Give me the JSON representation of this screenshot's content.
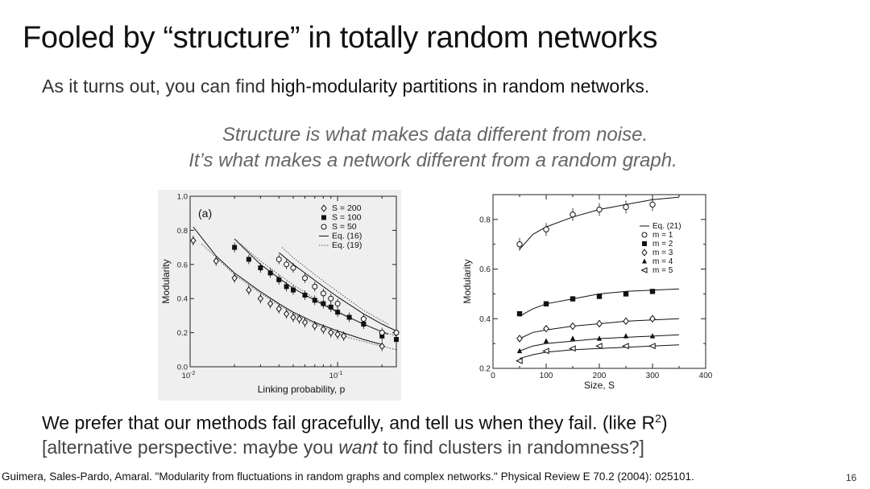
{
  "slide": {
    "title": "Fooled by “structure” in totally random networks",
    "subtitle_pre": "As it turns out, you can find ",
    "subtitle_hl": "high-modularity partitions in random networks",
    "subtitle_post": ".",
    "quote_line1": "Structure is what makes data different from noise.",
    "quote_line2": "It’s what makes a network different from a random graph.",
    "bottom_line1": "We prefer that our methods fail gracefully, and tell us when they fail. (like R",
    "bottom_line1_sup": "2",
    "bottom_line1_end": ")",
    "bottom_line2_pre": "[alternative perspective: maybe you ",
    "bottom_line2_em": "want",
    "bottom_line2_post": " to find clusters in randomness?]",
    "citation": "Guimera, Sales-Pardo, Amaral. \"Modularity from fluctuations in random graphs and complex networks.\" Physical Review E 70.2 (2004): 025101.",
    "page_number": "16"
  },
  "chart_data": [
    {
      "type": "scatter",
      "panel_label": "(a)",
      "xlabel": "Linking probability, p",
      "ylabel": "Modularity",
      "xscale": "log",
      "xlim": [
        0.01,
        0.25
      ],
      "ylim": [
        0.0,
        1.0
      ],
      "xticks": [
        {
          "value": 0.01,
          "label": "10",
          "sup": "-2"
        },
        {
          "value": 0.1,
          "label": "10",
          "sup": "-1"
        }
      ],
      "yticks": [
        "0.0",
        "0.2",
        "0.4",
        "0.6",
        "0.8",
        "1.0"
      ],
      "legend": {
        "position": "top-right",
        "entries": [
          "S = 200",
          "S = 100",
          "S = 50",
          "Eq. (16)",
          "Eq. (19)"
        ]
      },
      "series": [
        {
          "name": "S = 200",
          "marker": "diamond-open",
          "x": [
            0.0105,
            0.015,
            0.02,
            0.025,
            0.03,
            0.035,
            0.04,
            0.045,
            0.05,
            0.055,
            0.06,
            0.07,
            0.08,
            0.09,
            0.1,
            0.11,
            0.2
          ],
          "y": [
            0.74,
            0.62,
            0.52,
            0.45,
            0.4,
            0.37,
            0.34,
            0.31,
            0.29,
            0.28,
            0.26,
            0.24,
            0.22,
            0.2,
            0.19,
            0.18,
            0.12
          ]
        },
        {
          "name": "S = 100",
          "marker": "square-filled",
          "x": [
            0.02,
            0.025,
            0.03,
            0.035,
            0.04,
            0.045,
            0.05,
            0.06,
            0.07,
            0.08,
            0.09,
            0.1,
            0.12,
            0.15,
            0.2,
            0.25
          ],
          "y": [
            0.7,
            0.63,
            0.58,
            0.55,
            0.51,
            0.47,
            0.45,
            0.42,
            0.39,
            0.37,
            0.35,
            0.32,
            0.29,
            0.25,
            0.18,
            0.16
          ]
        },
        {
          "name": "S = 50",
          "marker": "circle-open",
          "x": [
            0.04,
            0.045,
            0.05,
            0.06,
            0.07,
            0.08,
            0.09,
            0.1,
            0.15,
            0.2,
            0.25
          ],
          "y": [
            0.63,
            0.6,
            0.58,
            0.52,
            0.47,
            0.43,
            0.4,
            0.37,
            0.28,
            0.2,
            0.2
          ]
        }
      ],
      "curves": [
        {
          "name": "Eq. (16)",
          "style": "solid",
          "x": [
            0.0105,
            0.015,
            0.02,
            0.03,
            0.04,
            0.05,
            0.07,
            0.1,
            0.15,
            0.2
          ],
          "y": [
            0.82,
            0.65,
            0.55,
            0.44,
            0.37,
            0.32,
            0.26,
            0.21,
            0.16,
            0.13
          ]
        },
        {
          "name": "Eq. (16)",
          "style": "solid",
          "x": [
            0.02,
            0.03,
            0.04,
            0.05,
            0.07,
            0.1,
            0.15,
            0.22
          ],
          "y": [
            0.75,
            0.6,
            0.52,
            0.46,
            0.39,
            0.32,
            0.25,
            0.19
          ]
        },
        {
          "name": "Eq. (16)",
          "style": "solid",
          "x": [
            0.04,
            0.05,
            0.06,
            0.08,
            0.1,
            0.15,
            0.2,
            0.25
          ],
          "y": [
            0.67,
            0.6,
            0.55,
            0.47,
            0.41,
            0.31,
            0.25,
            0.21
          ]
        },
        {
          "name": "Eq. (19)",
          "style": "dotted",
          "x": [
            0.012,
            0.02,
            0.03,
            0.05,
            0.08,
            0.12,
            0.18,
            0.25
          ],
          "y": [
            0.72,
            0.54,
            0.43,
            0.31,
            0.23,
            0.17,
            0.13,
            0.1
          ]
        },
        {
          "name": "Eq. (19)",
          "style": "dotted",
          "x": [
            0.022,
            0.03,
            0.05,
            0.08,
            0.12,
            0.18,
            0.25
          ],
          "y": [
            0.72,
            0.62,
            0.48,
            0.37,
            0.29,
            0.22,
            0.18
          ]
        },
        {
          "name": "Eq. (19)",
          "style": "dotted",
          "x": [
            0.042,
            0.05,
            0.07,
            0.1,
            0.15,
            0.22
          ],
          "y": [
            0.7,
            0.64,
            0.54,
            0.44,
            0.33,
            0.25
          ]
        }
      ]
    },
    {
      "type": "scatter",
      "xlabel": "Size, S",
      "ylabel": "Modularity",
      "xlim": [
        0,
        400
      ],
      "ylim": [
        0.2,
        0.9
      ],
      "xticks": [
        "0",
        "100",
        "200",
        "300",
        "400"
      ],
      "yticks": [
        "0.2",
        "0.4",
        "0.6",
        "0.8"
      ],
      "legend": {
        "position": "right",
        "entries": [
          "Eq. (21)",
          "m = 1",
          "m = 2",
          "m = 3",
          "m = 4",
          "m = 5"
        ]
      },
      "series": [
        {
          "name": "m = 1",
          "marker": "circle-open",
          "x": [
            50,
            100,
            150,
            200,
            250,
            300
          ],
          "y": [
            0.7,
            0.76,
            0.82,
            0.84,
            0.85,
            0.86
          ]
        },
        {
          "name": "m = 2",
          "marker": "square-filled",
          "x": [
            50,
            100,
            150,
            200,
            250,
            300
          ],
          "y": [
            0.42,
            0.46,
            0.48,
            0.49,
            0.5,
            0.51
          ]
        },
        {
          "name": "m = 3",
          "marker": "diamond-open",
          "x": [
            50,
            100,
            150,
            200,
            250,
            300
          ],
          "y": [
            0.32,
            0.36,
            0.37,
            0.38,
            0.39,
            0.4
          ]
        },
        {
          "name": "m = 4",
          "marker": "triangle-up-filled",
          "x": [
            50,
            100,
            150,
            200,
            250,
            300
          ],
          "y": [
            0.27,
            0.31,
            0.32,
            0.32,
            0.33,
            0.33
          ]
        },
        {
          "name": "m = 5",
          "marker": "triangle-left-open",
          "x": [
            50,
            100,
            150,
            200,
            250,
            300
          ],
          "y": [
            0.23,
            0.27,
            0.28,
            0.29,
            0.29,
            0.29
          ]
        }
      ],
      "curves": [
        {
          "name": "Eq. (21)",
          "x": [
            50,
            75,
            100,
            150,
            200,
            250,
            300,
            350
          ],
          "y": [
            0.68,
            0.74,
            0.77,
            0.81,
            0.84,
            0.86,
            0.88,
            0.89
          ]
        },
        {
          "name": "Eq. (21)",
          "x": [
            50,
            75,
            100,
            150,
            200,
            250,
            300,
            350
          ],
          "y": [
            0.41,
            0.44,
            0.46,
            0.48,
            0.5,
            0.51,
            0.515,
            0.52
          ]
        },
        {
          "name": "Eq. (21)",
          "x": [
            50,
            75,
            100,
            150,
            200,
            250,
            300,
            350
          ],
          "y": [
            0.32,
            0.345,
            0.355,
            0.37,
            0.38,
            0.39,
            0.395,
            0.4
          ]
        },
        {
          "name": "Eq. (21)",
          "x": [
            50,
            75,
            100,
            150,
            200,
            250,
            300,
            350
          ],
          "y": [
            0.27,
            0.29,
            0.3,
            0.31,
            0.32,
            0.325,
            0.33,
            0.335
          ]
        },
        {
          "name": "Eq. (21)",
          "x": [
            50,
            75,
            100,
            150,
            200,
            250,
            300,
            350
          ],
          "y": [
            0.24,
            0.255,
            0.265,
            0.275,
            0.28,
            0.285,
            0.29,
            0.295
          ]
        }
      ]
    }
  ]
}
